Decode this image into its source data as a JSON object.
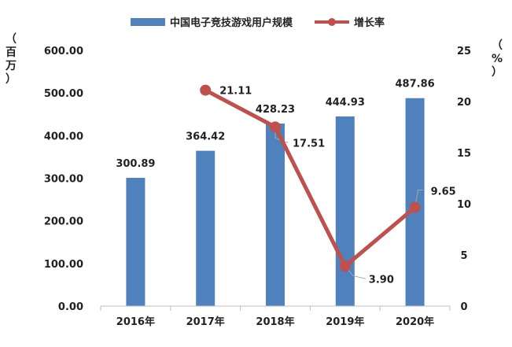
{
  "chart_data": {
    "type": "bar",
    "categories": [
      "2016年",
      "2017年",
      "2018年",
      "2019年",
      "2020年"
    ],
    "series": [
      {
        "name": "中国电子竞技游戏用户规模",
        "type": "bar",
        "axis": "left",
        "color": "#4f81bd",
        "values": [
          300.89,
          364.42,
          428.23,
          444.93,
          487.86
        ],
        "labels": [
          "300.89",
          "364.42",
          "428.23",
          "444.93",
          "487.86"
        ]
      },
      {
        "name": "增长率",
        "type": "line",
        "axis": "right",
        "color": "#c0504d",
        "values": [
          null,
          21.11,
          17.51,
          3.9,
          9.65
        ],
        "labels": [
          "",
          "21.11",
          "17.51",
          "3.90",
          "9.65"
        ]
      }
    ],
    "y_left": {
      "unit": "（百万）",
      "ylim": [
        0,
        600
      ],
      "ticks": [
        "0.00",
        "100.00",
        "200.00",
        "300.00",
        "400.00",
        "500.00",
        "600.00"
      ]
    },
    "y_right": {
      "unit": "（%）",
      "ylim": [
        0,
        25
      ],
      "ticks": [
        "0",
        "5",
        "10",
        "15",
        "20",
        "25"
      ]
    },
    "legend_position": "top",
    "grid": false
  }
}
